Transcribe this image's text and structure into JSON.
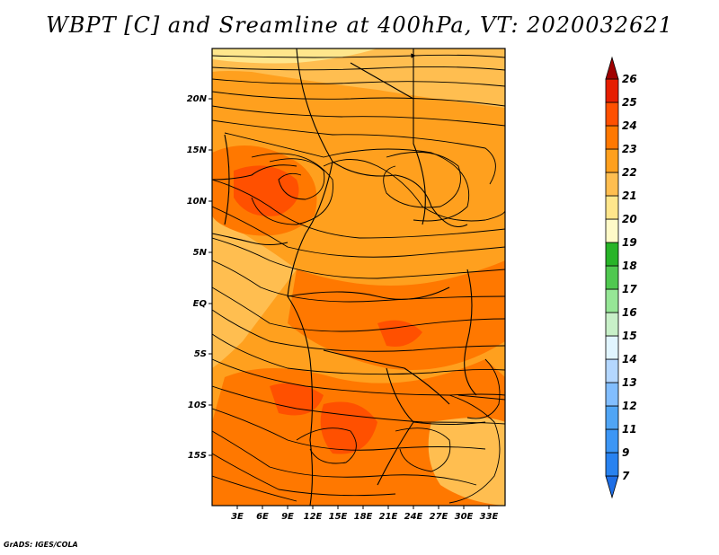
{
  "title": "WBPT [C] and Sreamline at 400hPa, VT: 2020032621",
  "credit": "GrADS: IGES/COLA",
  "map": {
    "lat_labels": [
      "20N",
      "15N",
      "10N",
      "5N",
      "EQ",
      "5S",
      "10S",
      "15S"
    ],
    "lon_labels": [
      "3E",
      "6E",
      "9E",
      "12E",
      "15E",
      "18E",
      "21E",
      "24E",
      "27E",
      "30E",
      "33E"
    ]
  },
  "colorbar": {
    "labels": [
      "7",
      "9",
      "11",
      "12",
      "13",
      "14",
      "15",
      "16",
      "17",
      "18",
      "19",
      "20",
      "21",
      "22",
      "23",
      "24",
      "25",
      "26"
    ],
    "colors": [
      "#1e6ee6",
      "#2882f0",
      "#3c96f5",
      "#50a5f5",
      "#82beff",
      "#b4d7ff",
      "#e1f5ff",
      "#c8f0c8",
      "#96e696",
      "#50c850",
      "#28b428",
      "#fffac8",
      "#ffe68c",
      "#ffbe50",
      "#ffa01e",
      "#ff7800",
      "#ff5000",
      "#e61e00",
      "#a00000"
    ]
  }
}
